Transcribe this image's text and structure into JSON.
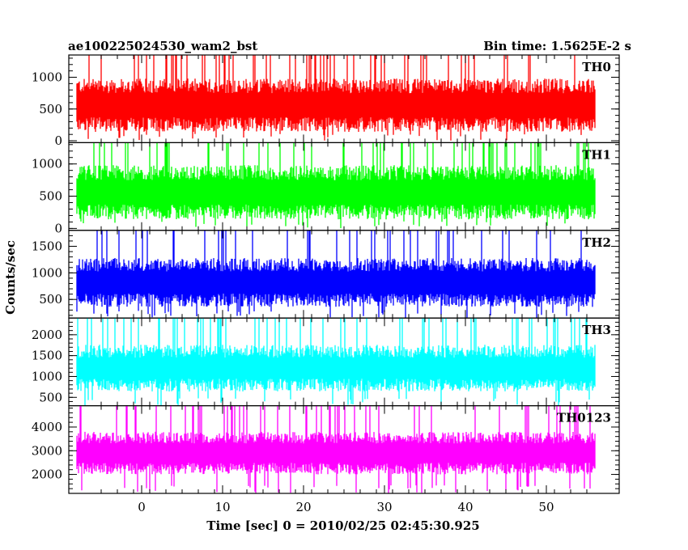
{
  "chart_data": {
    "type": "line",
    "title_left": "ae100225024530_wam2_bst",
    "title_right": "Bin time: 1.5625E-2 s",
    "xlabel": "Time [sec] 0 = 2010/02/25 02:45:30.925",
    "ylabel": "Counts/sec",
    "xlim": [
      -9,
      59
    ],
    "x_ticks": [
      0,
      10,
      20,
      30,
      40,
      50
    ],
    "x_tick_labels": [
      "0",
      "10",
      "20",
      "30",
      "40",
      "50"
    ],
    "data_x_range": [
      -8,
      56
    ],
    "panels": [
      {
        "name": "TH0",
        "color": "#ff0000",
        "ylim": [
          -30,
          1350
        ],
        "y_ticks": [
          0,
          500,
          1000
        ],
        "y_tick_labels": [
          "0",
          "500",
          "1000"
        ],
        "mean": 560,
        "spread": 420,
        "min_value": 0,
        "max_value": 1350
      },
      {
        "name": "TH1",
        "color": "#00ff00",
        "ylim": [
          -30,
          1330
        ],
        "y_ticks": [
          0,
          500,
          1000
        ],
        "y_tick_labels": [
          "0",
          "500",
          "1000"
        ],
        "mean": 560,
        "spread": 420,
        "min_value": 0,
        "max_value": 1330
      },
      {
        "name": "TH2",
        "color": "#0000ff",
        "ylim": [
          150,
          1800
        ],
        "y_ticks": [
          500,
          1000,
          1500
        ],
        "y_tick_labels": [
          "500",
          "1000",
          "1500"
        ],
        "mean": 820,
        "spread": 460,
        "min_value": 150,
        "max_value": 1800
      },
      {
        "name": "TH3",
        "color": "#00ffff",
        "ylim": [
          300,
          2400
        ],
        "y_ticks": [
          500,
          1000,
          1500,
          2000
        ],
        "y_tick_labels": [
          "500",
          "1000",
          "1500",
          "2000"
        ],
        "mean": 1200,
        "spread": 560,
        "min_value": 300,
        "max_value": 2400
      },
      {
        "name": "TH0123",
        "color": "#ff00ff",
        "ylim": [
          1200,
          4900
        ],
        "y_ticks": [
          2000,
          3000,
          4000
        ],
        "y_tick_labels": [
          "2000",
          "3000",
          "4000"
        ],
        "mean": 2900,
        "spread": 900,
        "min_value": 1200,
        "max_value": 4900
      }
    ]
  }
}
